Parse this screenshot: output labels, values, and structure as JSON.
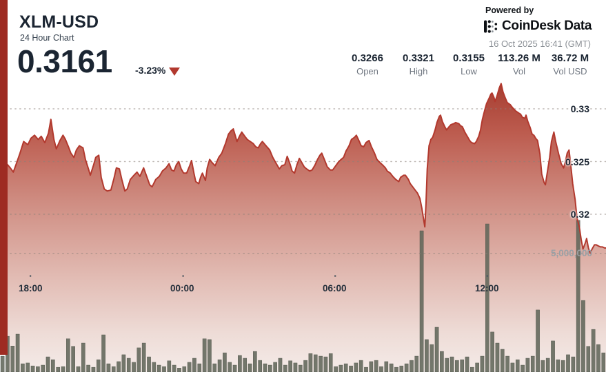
{
  "header": {
    "symbol": "XLM-USD",
    "subtitle": "24 Hour Chart",
    "price": "0.3161",
    "change_pct": "-3.23%",
    "direction": "down",
    "powered_by": "Powered by",
    "brand": "CoinDesk Data",
    "timestamp": "16 Oct 2025 16:41 (GMT)"
  },
  "stats": [
    {
      "value": "0.3266",
      "label": "Open"
    },
    {
      "value": "0.3321",
      "label": "High"
    },
    {
      "value": "0.3155",
      "label": "Low"
    },
    {
      "value": "113.26 M",
      "label": "Vol"
    },
    {
      "value": "36.72 M",
      "label": "Vol USD"
    }
  ],
  "chart_data": {
    "type": "area",
    "title": "XLM-USD 24 Hour Chart",
    "x_axis": "time (24h window ending 16:41 GMT)",
    "y_axis_price": {
      "ticks": [
        0.33,
        0.325,
        0.32
      ],
      "tick_labels": [
        "0.33",
        "0.325",
        "0.32"
      ]
    },
    "y_axis_volume": {
      "tick_value_m": 5,
      "tick_label": "5,000,000"
    },
    "x_ticks": [
      {
        "label": "18:00",
        "pos": 0.05
      },
      {
        "label": "00:00",
        "pos": 0.302
      },
      {
        "label": "06:00",
        "pos": 0.553
      },
      {
        "label": "12:00",
        "pos": 0.804
      }
    ],
    "grid": "dotted",
    "legend": "none",
    "colors": {
      "line": "#b2392e",
      "accent_bar": "#9e2b22",
      "volume_bar": "#61665a",
      "fill_top": "#a43b2e",
      "fill_bottom": "#f4ebe8",
      "down": "#b2392e"
    },
    "price_series": [
      [
        0.011,
        0.3248
      ],
      [
        0.017,
        0.3244
      ],
      [
        0.022,
        0.324
      ],
      [
        0.027,
        0.3248
      ],
      [
        0.033,
        0.3258
      ],
      [
        0.039,
        0.3269
      ],
      [
        0.046,
        0.3266
      ],
      [
        0.051,
        0.3272
      ],
      [
        0.057,
        0.3275
      ],
      [
        0.063,
        0.3271
      ],
      [
        0.068,
        0.3274
      ],
      [
        0.074,
        0.3268
      ],
      [
        0.08,
        0.3277
      ],
      [
        0.084,
        0.329
      ],
      [
        0.089,
        0.3271
      ],
      [
        0.093,
        0.3262
      ],
      [
        0.099,
        0.327
      ],
      [
        0.104,
        0.3275
      ],
      [
        0.108,
        0.3271
      ],
      [
        0.113,
        0.3264
      ],
      [
        0.117,
        0.3258
      ],
      [
        0.122,
        0.3254
      ],
      [
        0.126,
        0.3261
      ],
      [
        0.131,
        0.3265
      ],
      [
        0.137,
        0.3263
      ],
      [
        0.141,
        0.3252
      ],
      [
        0.146,
        0.3243
      ],
      [
        0.149,
        0.3237
      ],
      [
        0.154,
        0.3246
      ],
      [
        0.158,
        0.3254
      ],
      [
        0.163,
        0.3256
      ],
      [
        0.167,
        0.3235
      ],
      [
        0.172,
        0.3224
      ],
      [
        0.177,
        0.3222
      ],
      [
        0.183,
        0.3223
      ],
      [
        0.188,
        0.3234
      ],
      [
        0.192,
        0.3244
      ],
      [
        0.197,
        0.3243
      ],
      [
        0.201,
        0.3233
      ],
      [
        0.206,
        0.3222
      ],
      [
        0.21,
        0.3224
      ],
      [
        0.215,
        0.3233
      ],
      [
        0.221,
        0.3237
      ],
      [
        0.226,
        0.324
      ],
      [
        0.231,
        0.3236
      ],
      [
        0.237,
        0.3244
      ],
      [
        0.242,
        0.3236
      ],
      [
        0.247,
        0.3228
      ],
      [
        0.251,
        0.3226
      ],
      [
        0.257,
        0.3233
      ],
      [
        0.263,
        0.3236
      ],
      [
        0.268,
        0.3241
      ],
      [
        0.274,
        0.3244
      ],
      [
        0.279,
        0.3248
      ],
      [
        0.283,
        0.3242
      ],
      [
        0.287,
        0.3241
      ],
      [
        0.291,
        0.3247
      ],
      [
        0.295,
        0.325
      ],
      [
        0.299,
        0.3243
      ],
      [
        0.303,
        0.3239
      ],
      [
        0.308,
        0.3239
      ],
      [
        0.313,
        0.3246
      ],
      [
        0.316,
        0.3251
      ],
      [
        0.32,
        0.3239
      ],
      [
        0.323,
        0.3231
      ],
      [
        0.328,
        0.3229
      ],
      [
        0.331,
        0.3235
      ],
      [
        0.334,
        0.3239
      ],
      [
        0.339,
        0.3232
      ],
      [
        0.342,
        0.3244
      ],
      [
        0.346,
        0.3252
      ],
      [
        0.35,
        0.3249
      ],
      [
        0.355,
        0.3246
      ],
      [
        0.361,
        0.3254
      ],
      [
        0.366,
        0.3258
      ],
      [
        0.372,
        0.3267
      ],
      [
        0.377,
        0.3276
      ],
      [
        0.381,
        0.3279
      ],
      [
        0.385,
        0.3281
      ],
      [
        0.388,
        0.3275
      ],
      [
        0.391,
        0.3269
      ],
      [
        0.396,
        0.3275
      ],
      [
        0.399,
        0.3278
      ],
      [
        0.404,
        0.3274
      ],
      [
        0.408,
        0.3271
      ],
      [
        0.413,
        0.3269
      ],
      [
        0.418,
        0.3267
      ],
      [
        0.422,
        0.3264
      ],
      [
        0.426,
        0.3263
      ],
      [
        0.43,
        0.3267
      ],
      [
        0.433,
        0.3269
      ],
      [
        0.439,
        0.3265
      ],
      [
        0.445,
        0.3261
      ],
      [
        0.45,
        0.3254
      ],
      [
        0.456,
        0.3248
      ],
      [
        0.461,
        0.3243
      ],
      [
        0.465,
        0.3246
      ],
      [
        0.47,
        0.3247
      ],
      [
        0.474,
        0.3255
      ],
      [
        0.479,
        0.3247
      ],
      [
        0.482,
        0.3241
      ],
      [
        0.486,
        0.3239
      ],
      [
        0.49,
        0.3247
      ],
      [
        0.494,
        0.3253
      ],
      [
        0.497,
        0.325
      ],
      [
        0.502,
        0.3245
      ],
      [
        0.506,
        0.3243
      ],
      [
        0.511,
        0.3241
      ],
      [
        0.515,
        0.3242
      ],
      [
        0.52,
        0.3247
      ],
      [
        0.524,
        0.3252
      ],
      [
        0.528,
        0.3256
      ],
      [
        0.531,
        0.3258
      ],
      [
        0.536,
        0.3251
      ],
      [
        0.54,
        0.3245
      ],
      [
        0.545,
        0.3242
      ],
      [
        0.549,
        0.3242
      ],
      [
        0.554,
        0.3246
      ],
      [
        0.559,
        0.325
      ],
      [
        0.563,
        0.3252
      ],
      [
        0.567,
        0.3254
      ],
      [
        0.571,
        0.326
      ],
      [
        0.576,
        0.3265
      ],
      [
        0.58,
        0.3271
      ],
      [
        0.585,
        0.3273
      ],
      [
        0.588,
        0.3275
      ],
      [
        0.593,
        0.3269
      ],
      [
        0.596,
        0.3265
      ],
      [
        0.6,
        0.3264
      ],
      [
        0.604,
        0.3268
      ],
      [
        0.609,
        0.327
      ],
      [
        0.613,
        0.3264
      ],
      [
        0.618,
        0.3258
      ],
      [
        0.622,
        0.3252
      ],
      [
        0.627,
        0.3249
      ],
      [
        0.631,
        0.3247
      ],
      [
        0.636,
        0.3244
      ],
      [
        0.639,
        0.3241
      ],
      [
        0.644,
        0.3239
      ],
      [
        0.648,
        0.3236
      ],
      [
        0.653,
        0.3233
      ],
      [
        0.658,
        0.3231
      ],
      [
        0.661,
        0.3235
      ],
      [
        0.666,
        0.3237
      ],
      [
        0.669,
        0.3237
      ],
      [
        0.674,
        0.3233
      ],
      [
        0.677,
        0.3229
      ],
      [
        0.681,
        0.3226
      ],
      [
        0.685,
        0.3223
      ],
      [
        0.689,
        0.322
      ],
      [
        0.693,
        0.3215
      ],
      [
        0.696,
        0.3206
      ],
      [
        0.701,
        0.3188
      ],
      [
        0.703,
        0.321
      ],
      [
        0.705,
        0.3243
      ],
      [
        0.708,
        0.3265
      ],
      [
        0.711,
        0.3271
      ],
      [
        0.714,
        0.3273
      ],
      [
        0.718,
        0.328
      ],
      [
        0.721,
        0.3287
      ],
      [
        0.725,
        0.3293
      ],
      [
        0.727,
        0.3294
      ],
      [
        0.73,
        0.3288
      ],
      [
        0.734,
        0.3283
      ],
      [
        0.737,
        0.328
      ],
      [
        0.741,
        0.3283
      ],
      [
        0.744,
        0.3285
      ],
      [
        0.749,
        0.3286
      ],
      [
        0.752,
        0.3287
      ],
      [
        0.757,
        0.3286
      ],
      [
        0.76,
        0.3284
      ],
      [
        0.763,
        0.3283
      ],
      [
        0.767,
        0.3278
      ],
      [
        0.771,
        0.3274
      ],
      [
        0.775,
        0.327
      ],
      [
        0.778,
        0.3268
      ],
      [
        0.783,
        0.3267
      ],
      [
        0.786,
        0.3269
      ],
      [
        0.79,
        0.3274
      ],
      [
        0.793,
        0.328
      ],
      [
        0.796,
        0.329
      ],
      [
        0.8,
        0.3299
      ],
      [
        0.803,
        0.3305
      ],
      [
        0.807,
        0.331
      ],
      [
        0.81,
        0.3314
      ],
      [
        0.812,
        0.3315
      ],
      [
        0.815,
        0.3311
      ],
      [
        0.817,
        0.3307
      ],
      [
        0.82,
        0.3312
      ],
      [
        0.824,
        0.332
      ],
      [
        0.827,
        0.3324
      ],
      [
        0.83,
        0.3316
      ],
      [
        0.834,
        0.331
      ],
      [
        0.837,
        0.3306
      ],
      [
        0.842,
        0.3304
      ],
      [
        0.846,
        0.3301
      ],
      [
        0.851,
        0.3298
      ],
      [
        0.856,
        0.3296
      ],
      [
        0.859,
        0.3295
      ],
      [
        0.862,
        0.3292
      ],
      [
        0.866,
        0.3291
      ],
      [
        0.868,
        0.3294
      ],
      [
        0.871,
        0.3288
      ],
      [
        0.875,
        0.3282
      ],
      [
        0.878,
        0.3276
      ],
      [
        0.881,
        0.3275
      ],
      [
        0.884,
        0.3272
      ],
      [
        0.887,
        0.327
      ],
      [
        0.891,
        0.3257
      ],
      [
        0.894,
        0.3238
      ],
      [
        0.898,
        0.323
      ],
      [
        0.9,
        0.3228
      ],
      [
        0.903,
        0.3239
      ],
      [
        0.907,
        0.3254
      ],
      [
        0.91,
        0.3269
      ],
      [
        0.914,
        0.3278
      ],
      [
        0.917,
        0.3269
      ],
      [
        0.922,
        0.3257
      ],
      [
        0.926,
        0.3248
      ],
      [
        0.93,
        0.3244
      ],
      [
        0.933,
        0.325
      ],
      [
        0.936,
        0.3258
      ],
      [
        0.939,
        0.3261
      ],
      [
        0.942,
        0.3246
      ],
      [
        0.945,
        0.3229
      ],
      [
        0.949,
        0.3214
      ],
      [
        0.952,
        0.3197
      ],
      [
        0.956,
        0.3188
      ],
      [
        0.959,
        0.3176
      ],
      [
        0.962,
        0.3167
      ],
      [
        0.966,
        0.3173
      ],
      [
        0.968,
        0.3177
      ],
      [
        0.971,
        0.3168
      ],
      [
        0.974,
        0.3163
      ],
      [
        0.977,
        0.3167
      ],
      [
        0.981,
        0.3171
      ],
      [
        0.984,
        0.3171
      ],
      [
        0.987,
        0.317
      ],
      [
        0.991,
        0.3169
      ],
      [
        0.994,
        0.3169
      ],
      [
        0.998,
        0.3168
      ],
      [
        1.0,
        0.3168
      ]
    ],
    "volume_series_m": [
      0.67,
      1.51,
      1.1,
      1.6,
      0.35,
      0.38,
      0.26,
      0.23,
      0.29,
      0.64,
      0.52,
      0.2,
      0.23,
      1.4,
      1.08,
      0.23,
      1.22,
      0.29,
      0.2,
      0.52,
      1.57,
      0.35,
      0.23,
      0.44,
      0.73,
      0.58,
      0.41,
      1.02,
      1.22,
      0.64,
      0.41,
      0.29,
      0.23,
      0.47,
      0.29,
      0.17,
      0.23,
      0.41,
      0.58,
      0.35,
      1.4,
      1.37,
      0.35,
      0.52,
      0.81,
      0.41,
      0.29,
      0.7,
      0.58,
      0.35,
      0.87,
      0.49,
      0.35,
      0.29,
      0.41,
      0.58,
      0.29,
      0.47,
      0.38,
      0.29,
      0.49,
      0.78,
      0.73,
      0.67,
      0.64,
      0.78,
      0.23,
      0.29,
      0.35,
      0.26,
      0.38,
      0.49,
      0.2,
      0.44,
      0.49,
      0.23,
      0.44,
      0.35,
      0.2,
      0.26,
      0.35,
      0.49,
      0.67,
      5.96,
      1.37,
      1.16,
      1.89,
      0.87,
      0.58,
      0.64,
      0.49,
      0.52,
      0.64,
      0.2,
      0.38,
      0.67,
      6.25,
      1.69,
      1.22,
      0.96,
      0.67,
      0.38,
      0.52,
      0.29,
      0.58,
      0.67,
      2.62,
      0.49,
      0.58,
      1.31,
      0.52,
      0.49,
      0.73,
      0.64,
      6.4,
      3.02,
      1.08,
      1.8,
      1.16,
      0.81
    ]
  }
}
